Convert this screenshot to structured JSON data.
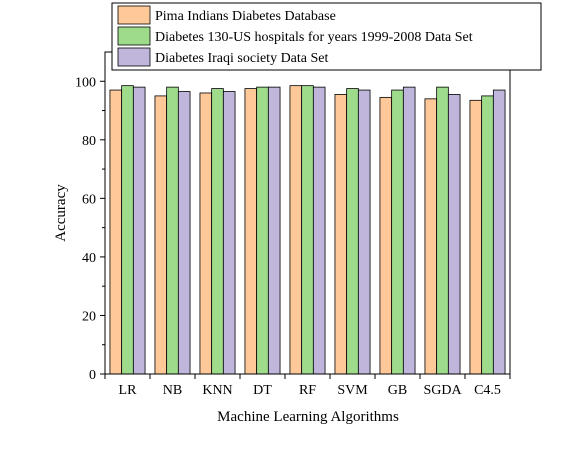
{
  "chart_data": {
    "type": "bar",
    "title": "",
    "xlabel": "Machine Learning Algorithms",
    "ylabel": "Accuracy",
    "ylim": [
      0,
      110
    ],
    "yticks": [
      0,
      20,
      40,
      60,
      80,
      100
    ],
    "grid": false,
    "legend_position": "top",
    "categories": [
      "LR",
      "NB",
      "KNN",
      "DT",
      "RF",
      "SVM",
      "GB",
      "SGDA",
      "C4.5"
    ],
    "series": [
      {
        "name": "Pima Indians Diabetes Database",
        "color": "#FFC899",
        "values": [
          97.0,
          95.0,
          96.0,
          97.5,
          98.5,
          95.5,
          94.5,
          94.0,
          93.5
        ]
      },
      {
        "name": "Diabetes 130-US hospitals for years 1999-2008 Data Set",
        "color": "#9EDC8C",
        "values": [
          98.5,
          98.0,
          97.5,
          98.0,
          98.5,
          97.5,
          97.0,
          98.0,
          95.0
        ]
      },
      {
        "name": "Diabetes Iraqi society Data Set",
        "color": "#C0B6DB",
        "values": [
          98.0,
          96.5,
          96.5,
          98.0,
          98.0,
          97.0,
          98.0,
          95.5,
          97.0
        ]
      }
    ]
  }
}
